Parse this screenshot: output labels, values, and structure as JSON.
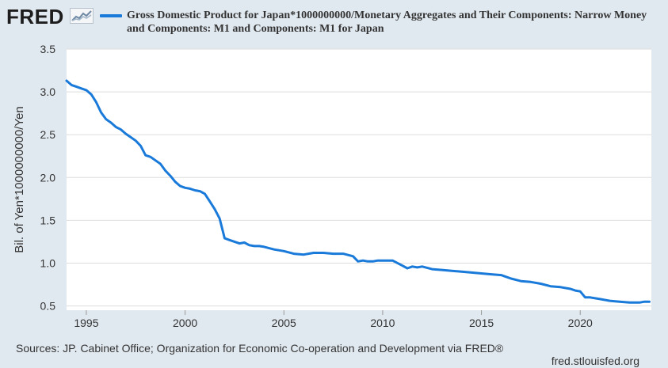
{
  "header": {
    "logo_text": "FRED",
    "logo_graph_icon": "fred-chart-icon",
    "legend": "Gross Domestic Product for Japan*1000000000/Monetary Aggregates and Their Components: Narrow Money and Components: M1 and Components: M1 for Japan"
  },
  "footer": {
    "sources": "Sources: JP. Cabinet Office; Organization for Economic Co-operation and Development via FRED®",
    "url": "fred.stlouisfed.org"
  },
  "colors": {
    "background": "#e1e9f0",
    "plot_background": "#ffffff",
    "series": "#1a7ad9",
    "grid": "#dddddd"
  },
  "chart_data": {
    "type": "line",
    "title": "",
    "xlabel": "",
    "ylabel": "Bil. of Yen*1000000000/Yen",
    "xlim": [
      1994.0,
      2023.6
    ],
    "ylim": [
      0.45,
      3.5
    ],
    "x_ticks": [
      1995,
      2000,
      2005,
      2010,
      2015,
      2020
    ],
    "y_ticks": [
      0.5,
      1.0,
      1.5,
      2.0,
      2.5,
      3.0,
      3.5
    ],
    "y_tick_labels": [
      "0.5",
      "1.0",
      "1.5",
      "2.0",
      "2.5",
      "3.0",
      "3.5"
    ],
    "grid": true,
    "legend_position": "top",
    "series": [
      {
        "name": "Gross Domestic Product for Japan*1000000000/Monetary Aggregates and Their Components: Narrow Money and Components: M1 and Components: M1 for Japan",
        "x": [
          1994.0,
          1994.25,
          1994.5,
          1994.75,
          1995.0,
          1995.25,
          1995.5,
          1995.75,
          1996.0,
          1996.25,
          1996.5,
          1996.75,
          1997.0,
          1997.25,
          1997.5,
          1997.75,
          1998.0,
          1998.25,
          1998.5,
          1998.75,
          1999.0,
          1999.25,
          1999.5,
          1999.75,
          2000.0,
          2000.25,
          2000.5,
          2000.75,
          2001.0,
          2001.25,
          2001.5,
          2001.75,
          2002.0,
          2002.25,
          2002.5,
          2002.75,
          2003.0,
          2003.25,
          2003.5,
          2003.75,
          2004.0,
          2004.5,
          2005.0,
          2005.5,
          2006.0,
          2006.5,
          2007.0,
          2007.5,
          2008.0,
          2008.5,
          2008.75,
          2009.0,
          2009.25,
          2009.5,
          2009.75,
          2010.0,
          2010.5,
          2011.0,
          2011.25,
          2011.5,
          2011.75,
          2012.0,
          2012.5,
          2013.0,
          2013.5,
          2014.0,
          2014.5,
          2015.0,
          2015.5,
          2016.0,
          2016.5,
          2017.0,
          2017.5,
          2018.0,
          2018.5,
          2019.0,
          2019.5,
          2019.75,
          2020.0,
          2020.25,
          2020.5,
          2021.0,
          2021.5,
          2022.0,
          2022.5,
          2023.0,
          2023.25,
          2023.5
        ],
        "y": [
          3.13,
          3.08,
          3.06,
          3.04,
          3.02,
          2.97,
          2.88,
          2.76,
          2.68,
          2.64,
          2.59,
          2.56,
          2.51,
          2.47,
          2.43,
          2.37,
          2.26,
          2.24,
          2.2,
          2.16,
          2.08,
          2.02,
          1.95,
          1.9,
          1.88,
          1.87,
          1.85,
          1.84,
          1.81,
          1.72,
          1.63,
          1.52,
          1.29,
          1.27,
          1.25,
          1.23,
          1.24,
          1.21,
          1.2,
          1.2,
          1.19,
          1.16,
          1.14,
          1.11,
          1.1,
          1.12,
          1.12,
          1.11,
          1.11,
          1.08,
          1.02,
          1.03,
          1.02,
          1.02,
          1.03,
          1.03,
          1.03,
          0.97,
          0.94,
          0.96,
          0.95,
          0.96,
          0.93,
          0.92,
          0.91,
          0.9,
          0.89,
          0.88,
          0.87,
          0.86,
          0.82,
          0.79,
          0.78,
          0.76,
          0.73,
          0.72,
          0.7,
          0.68,
          0.67,
          0.6,
          0.6,
          0.58,
          0.56,
          0.55,
          0.54,
          0.54,
          0.55,
          0.55
        ]
      }
    ]
  }
}
